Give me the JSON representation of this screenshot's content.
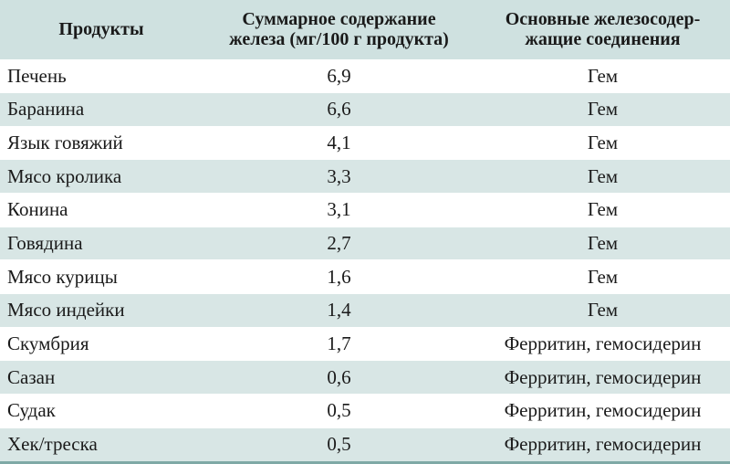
{
  "table": {
    "headers": [
      "Продукты",
      "Суммарное содержание\nжелеза (мг/100 г продукта)",
      "Основные железосодер-\nжащие соединения"
    ],
    "rows": [
      [
        "Печень",
        "6,9",
        "Гем"
      ],
      [
        "Баранина",
        "6,6",
        "Гем"
      ],
      [
        "Язык говяжий",
        "4,1",
        "Гем"
      ],
      [
        "Мясо кролика",
        "3,3",
        "Гем"
      ],
      [
        "Конина",
        "3,1",
        "Гем"
      ],
      [
        "Говядина",
        "2,7",
        "Гем"
      ],
      [
        "Мясо курицы",
        "1,6",
        "Гем"
      ],
      [
        "Мясо индейки",
        "1,4",
        "Гем"
      ],
      [
        "Скумбрия",
        "1,7",
        "Ферритин, гемосидерин"
      ],
      [
        "Сазан",
        "0,6",
        "Ферритин, гемосидерин"
      ],
      [
        "Судак",
        "0,5",
        "Ферритин, гемосидерин"
      ],
      [
        "Хек/треска",
        "0,5",
        "Ферритин, гемосидерин"
      ]
    ]
  },
  "colors": {
    "header_bg": "#cfe1e0",
    "shaded_row_bg": "#d8e6e5",
    "rule": "#7fa9a6"
  }
}
